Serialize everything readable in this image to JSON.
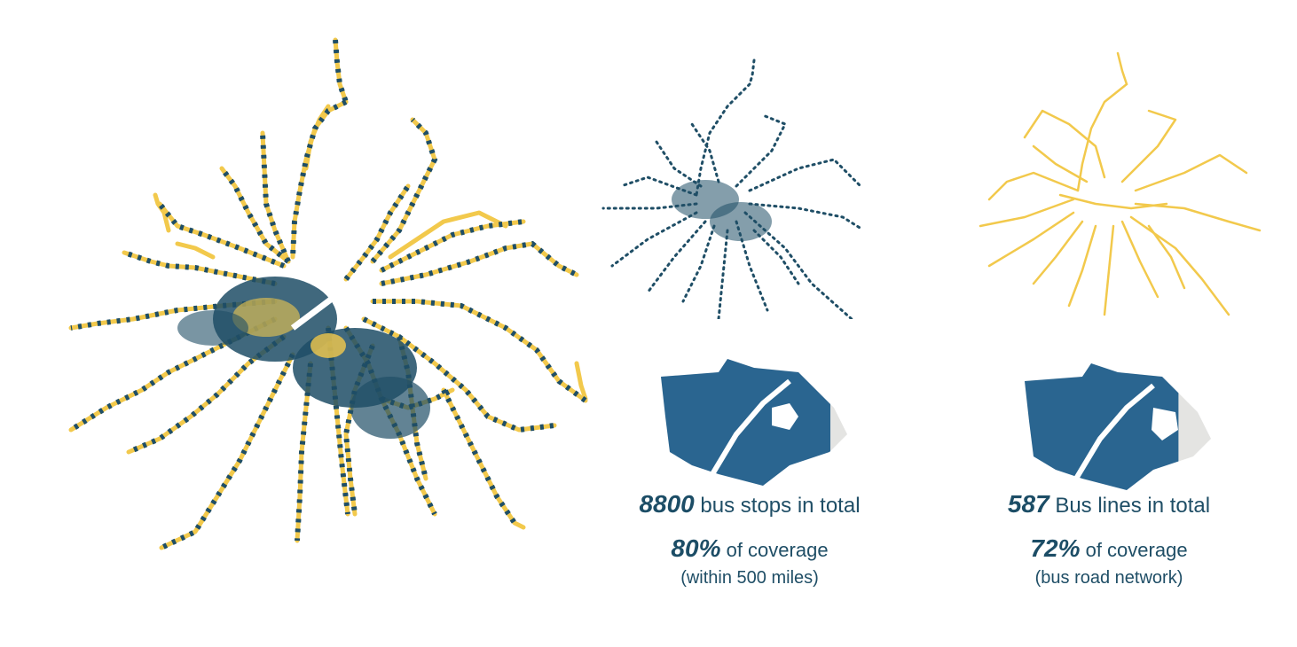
{
  "colors": {
    "stops": "#1f4e66",
    "lines": "#f2c94c",
    "coverage_fill": "#2a6590",
    "uncovered": "#e4e4e2"
  },
  "stops_panel": {
    "count": "8800",
    "count_label": "bus stops in total",
    "coverage_percent": "80%",
    "coverage_label": "of coverage",
    "coverage_note": "(within 500 miles)",
    "coverage_fraction": 0.8
  },
  "lines_panel": {
    "count": "587",
    "count_label": "Bus lines in total",
    "coverage_percent": "72%",
    "coverage_label": "of coverage",
    "coverage_note": "(bus road network)",
    "coverage_fraction": 0.72
  }
}
